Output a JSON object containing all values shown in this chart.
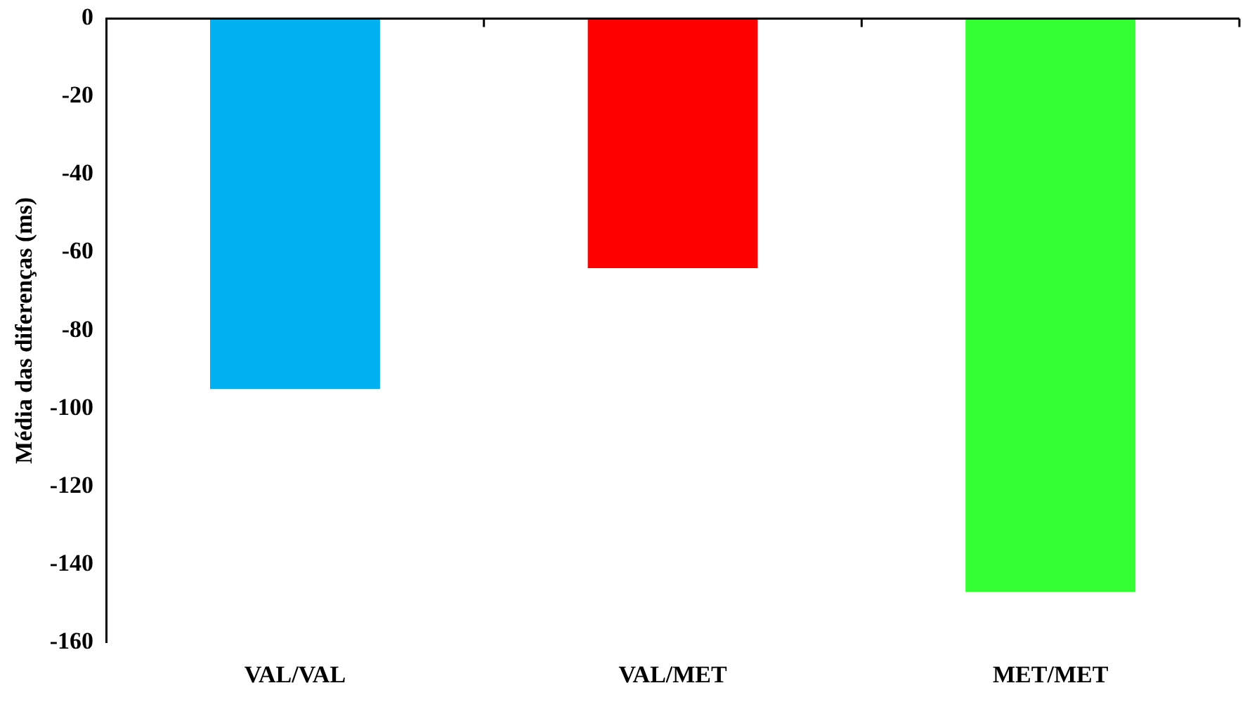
{
  "chart_data": {
    "type": "bar",
    "categories": [
      "VAL/VAL",
      "VAL/MET",
      "MET/MET"
    ],
    "values": [
      -95,
      -64,
      -147
    ],
    "colors": [
      "#00b0f0",
      "#ff0000",
      "#33ff33"
    ],
    "ylabel": "Média das diferenças (ms)",
    "ylim": [
      -160,
      0
    ],
    "yticks": [
      -160,
      -140,
      -120,
      -100,
      -80,
      -60,
      -40,
      -20,
      0
    ],
    "grid": false,
    "legend": false
  }
}
